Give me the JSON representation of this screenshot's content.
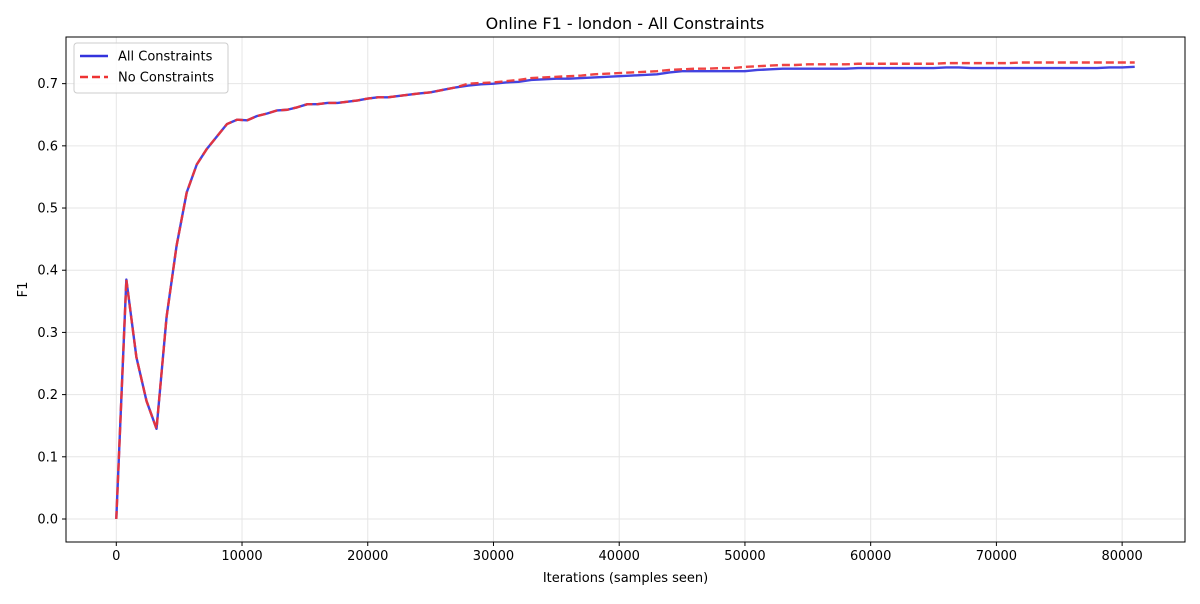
{
  "chart_data": {
    "type": "line",
    "title": "Online F1 - london - All Constraints",
    "xlabel": "Iterations (samples seen)",
    "ylabel": "F1",
    "xlim": [
      -4000,
      85000
    ],
    "ylim": [
      -0.037,
      0.775
    ],
    "x_ticks": [
      0,
      10000,
      20000,
      30000,
      40000,
      50000,
      60000,
      70000,
      80000
    ],
    "y_ticks": [
      0.0,
      0.1,
      0.2,
      0.3,
      0.4,
      0.5,
      0.6,
      0.7
    ],
    "x_tick_labels": [
      "0",
      "10000",
      "20000",
      "30000",
      "40000",
      "50000",
      "60000",
      "70000",
      "80000"
    ],
    "y_tick_labels": [
      "0.0",
      "0.1",
      "0.2",
      "0.3",
      "0.4",
      "0.5",
      "0.6",
      "0.7"
    ],
    "grid": true,
    "legend_position": "top-left",
    "series": [
      {
        "name": "All Constraints",
        "color": "#3333dd",
        "style": "solid",
        "points": [
          [
            0,
            0.0
          ],
          [
            800,
            0.385
          ],
          [
            1600,
            0.26
          ],
          [
            2400,
            0.19
          ],
          [
            3200,
            0.145
          ],
          [
            4000,
            0.325
          ],
          [
            4800,
            0.44
          ],
          [
            5600,
            0.525
          ],
          [
            6400,
            0.57
          ],
          [
            7200,
            0.595
          ],
          [
            8000,
            0.615
          ],
          [
            8800,
            0.635
          ],
          [
            9600,
            0.642
          ],
          [
            10400,
            0.641
          ],
          [
            11200,
            0.648
          ],
          [
            12000,
            0.652
          ],
          [
            12800,
            0.657
          ],
          [
            13600,
            0.658
          ],
          [
            14400,
            0.662
          ],
          [
            15200,
            0.667
          ],
          [
            16000,
            0.667
          ],
          [
            16800,
            0.669
          ],
          [
            17600,
            0.669
          ],
          [
            18400,
            0.671
          ],
          [
            19200,
            0.673
          ],
          [
            20000,
            0.676
          ],
          [
            20800,
            0.678
          ],
          [
            21600,
            0.678
          ],
          [
            22400,
            0.68
          ],
          [
            23200,
            0.682
          ],
          [
            24000,
            0.684
          ],
          [
            25000,
            0.686
          ],
          [
            26000,
            0.69
          ],
          [
            27000,
            0.694
          ],
          [
            28000,
            0.697
          ],
          [
            29000,
            0.699
          ],
          [
            30000,
            0.7
          ],
          [
            31000,
            0.702
          ],
          [
            32000,
            0.703
          ],
          [
            33000,
            0.706
          ],
          [
            34000,
            0.707
          ],
          [
            35000,
            0.708
          ],
          [
            36000,
            0.708
          ],
          [
            37000,
            0.709
          ],
          [
            38000,
            0.71
          ],
          [
            39000,
            0.711
          ],
          [
            40000,
            0.712
          ],
          [
            41000,
            0.713
          ],
          [
            42000,
            0.714
          ],
          [
            43000,
            0.715
          ],
          [
            44000,
            0.718
          ],
          [
            45000,
            0.72
          ],
          [
            46000,
            0.72
          ],
          [
            47000,
            0.72
          ],
          [
            48000,
            0.72
          ],
          [
            49000,
            0.72
          ],
          [
            50000,
            0.72
          ],
          [
            51000,
            0.722
          ],
          [
            52000,
            0.723
          ],
          [
            53000,
            0.724
          ],
          [
            54000,
            0.724
          ],
          [
            55000,
            0.724
          ],
          [
            56000,
            0.724
          ],
          [
            57000,
            0.724
          ],
          [
            58000,
            0.724
          ],
          [
            59000,
            0.725
          ],
          [
            60000,
            0.725
          ],
          [
            61000,
            0.725
          ],
          [
            62000,
            0.725
          ],
          [
            63000,
            0.725
          ],
          [
            64000,
            0.725
          ],
          [
            65000,
            0.725
          ],
          [
            66000,
            0.726
          ],
          [
            67000,
            0.726
          ],
          [
            68000,
            0.725
          ],
          [
            69000,
            0.725
          ],
          [
            70000,
            0.725
          ],
          [
            71000,
            0.725
          ],
          [
            72000,
            0.725
          ],
          [
            73000,
            0.725
          ],
          [
            74000,
            0.725
          ],
          [
            75000,
            0.725
          ],
          [
            76000,
            0.725
          ],
          [
            77000,
            0.725
          ],
          [
            78000,
            0.725
          ],
          [
            79000,
            0.726
          ],
          [
            80000,
            0.726
          ],
          [
            81000,
            0.727
          ]
        ]
      },
      {
        "name": "No Constraints",
        "color": "#ee3333",
        "style": "dashed",
        "points": [
          [
            0,
            0.0
          ],
          [
            800,
            0.385
          ],
          [
            1600,
            0.26
          ],
          [
            2400,
            0.19
          ],
          [
            3200,
            0.145
          ],
          [
            4000,
            0.325
          ],
          [
            4800,
            0.44
          ],
          [
            5600,
            0.525
          ],
          [
            6400,
            0.57
          ],
          [
            7200,
            0.595
          ],
          [
            8000,
            0.615
          ],
          [
            8800,
            0.635
          ],
          [
            9600,
            0.642
          ],
          [
            10400,
            0.641
          ],
          [
            11200,
            0.648
          ],
          [
            12000,
            0.652
          ],
          [
            12800,
            0.657
          ],
          [
            13600,
            0.658
          ],
          [
            14400,
            0.662
          ],
          [
            15200,
            0.667
          ],
          [
            16000,
            0.667
          ],
          [
            16800,
            0.669
          ],
          [
            17600,
            0.669
          ],
          [
            18400,
            0.671
          ],
          [
            19200,
            0.673
          ],
          [
            20000,
            0.676
          ],
          [
            20800,
            0.678
          ],
          [
            21600,
            0.678
          ],
          [
            22400,
            0.68
          ],
          [
            23200,
            0.682
          ],
          [
            24000,
            0.684
          ],
          [
            25000,
            0.686
          ],
          [
            26000,
            0.69
          ],
          [
            27000,
            0.694
          ],
          [
            28000,
            0.7
          ],
          [
            29000,
            0.701
          ],
          [
            30000,
            0.702
          ],
          [
            31000,
            0.704
          ],
          [
            32000,
            0.706
          ],
          [
            33000,
            0.709
          ],
          [
            34000,
            0.71
          ],
          [
            35000,
            0.711
          ],
          [
            36000,
            0.712
          ],
          [
            37000,
            0.713
          ],
          [
            38000,
            0.715
          ],
          [
            39000,
            0.716
          ],
          [
            40000,
            0.717
          ],
          [
            41000,
            0.718
          ],
          [
            42000,
            0.719
          ],
          [
            43000,
            0.72
          ],
          [
            44000,
            0.722
          ],
          [
            45000,
            0.723
          ],
          [
            46000,
            0.724
          ],
          [
            47000,
            0.724
          ],
          [
            48000,
            0.725
          ],
          [
            49000,
            0.725
          ],
          [
            50000,
            0.727
          ],
          [
            51000,
            0.728
          ],
          [
            52000,
            0.729
          ],
          [
            53000,
            0.73
          ],
          [
            54000,
            0.73
          ],
          [
            55000,
            0.731
          ],
          [
            56000,
            0.731
          ],
          [
            57000,
            0.731
          ],
          [
            58000,
            0.731
          ],
          [
            59000,
            0.732
          ],
          [
            60000,
            0.732
          ],
          [
            61000,
            0.732
          ],
          [
            62000,
            0.732
          ],
          [
            63000,
            0.732
          ],
          [
            64000,
            0.732
          ],
          [
            65000,
            0.732
          ],
          [
            66000,
            0.733
          ],
          [
            67000,
            0.733
          ],
          [
            68000,
            0.733
          ],
          [
            69000,
            0.733
          ],
          [
            70000,
            0.733
          ],
          [
            71000,
            0.733
          ],
          [
            72000,
            0.734
          ],
          [
            73000,
            0.734
          ],
          [
            74000,
            0.734
          ],
          [
            75000,
            0.734
          ],
          [
            76000,
            0.734
          ],
          [
            77000,
            0.734
          ],
          [
            78000,
            0.734
          ],
          [
            79000,
            0.734
          ],
          [
            80000,
            0.734
          ],
          [
            81000,
            0.734
          ]
        ]
      }
    ]
  }
}
